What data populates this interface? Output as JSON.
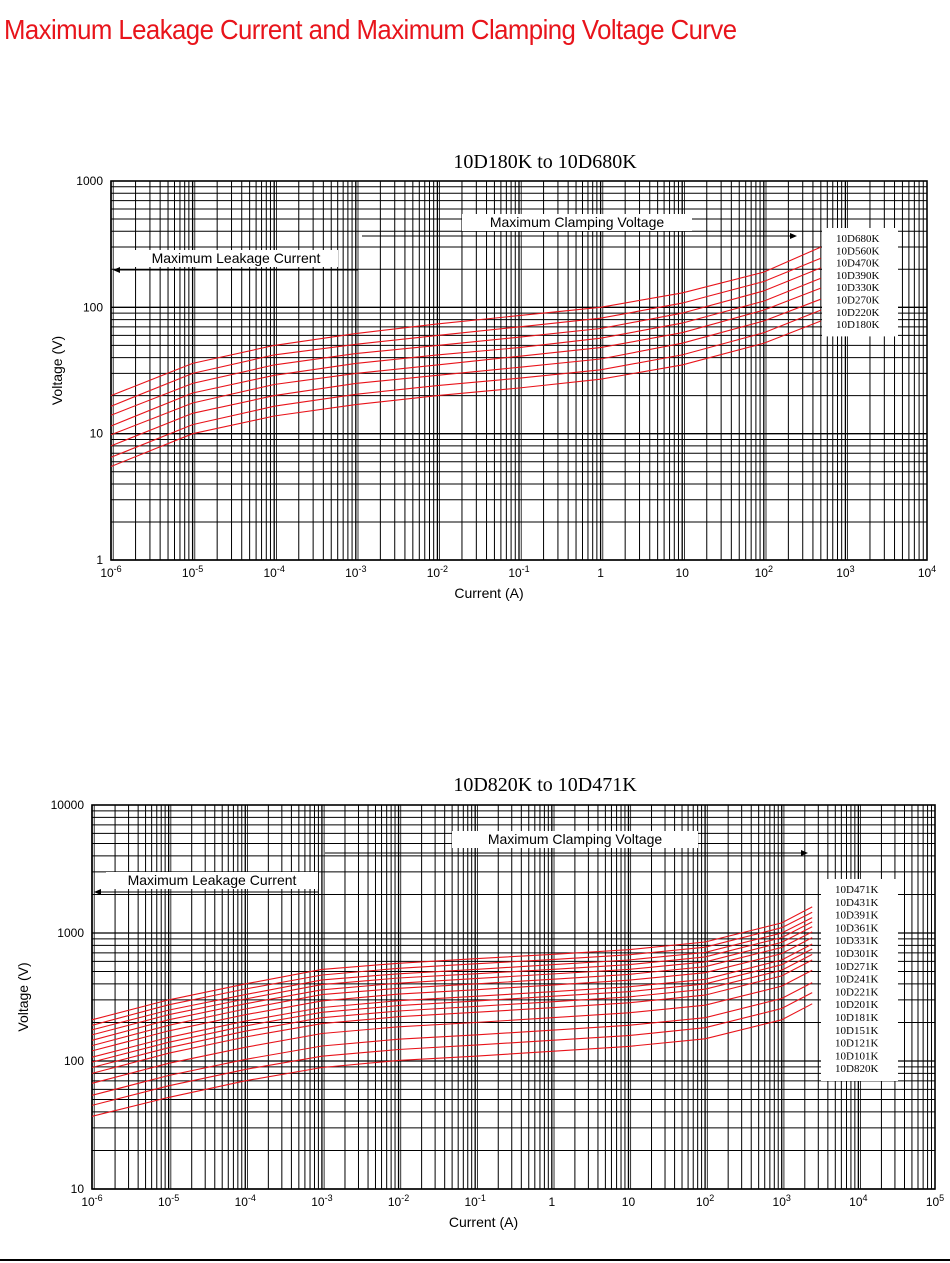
{
  "page_title": "Maximum Leakage Current and Maximum Clamping Voltage Curve",
  "colors": {
    "title": "#e8141b",
    "curve": "#e8141b",
    "grid": "#000000"
  },
  "chart_data": [
    {
      "type": "line",
      "title": "10D180K to 10D680K",
      "xlabel": "Current (A)",
      "ylabel": "Voltage (V)",
      "x_scale": "log",
      "y_scale": "log",
      "xlim": [
        1e-06,
        10000.0
      ],
      "ylim": [
        1,
        1000
      ],
      "x_ticks": [
        {
          "base": "10",
          "exp": "-6"
        },
        {
          "base": "10",
          "exp": "-5"
        },
        {
          "base": "10",
          "exp": "-4"
        },
        {
          "base": "10",
          "exp": "-3"
        },
        {
          "base": "10",
          "exp": "-2"
        },
        {
          "base": "10",
          "exp": "-1"
        },
        {
          "base": "1",
          "exp": ""
        },
        {
          "base": "10",
          "exp": ""
        },
        {
          "base": "10",
          "exp": "2"
        },
        {
          "base": "10",
          "exp": "3"
        },
        {
          "base": "10",
          "exp": "4"
        }
      ],
      "y_ticks": [
        "1",
        "10",
        "100",
        "1000"
      ],
      "annotations": {
        "clamping": "Maximum Clamping Voltage",
        "leakage": "Maximum Leakage Current"
      },
      "legend": [
        "10D680K",
        "10D560K",
        "10D470K",
        "10D390K",
        "10D330K",
        "10D270K",
        "10D220K",
        "10D180K"
      ],
      "x": [
        1e-06,
        1e-05,
        0.0001,
        0.001,
        0.01,
        0.1,
        1,
        10,
        100,
        500
      ],
      "series": [
        {
          "name": "10D680K",
          "values": [
            20,
            36,
            50,
            62,
            74,
            86,
            100,
            130,
            190,
            300
          ]
        },
        {
          "name": "10D560K",
          "values": [
            16.5,
            30,
            42,
            51,
            60,
            70,
            82,
            108,
            160,
            245
          ]
        },
        {
          "name": "10D470K",
          "values": [
            14,
            25,
            35,
            43,
            50,
            58,
            68,
            90,
            135,
            205
          ]
        },
        {
          "name": "10D390K",
          "values": [
            11.5,
            21,
            29,
            36,
            42,
            48,
            57,
            75,
            112,
            170
          ]
        },
        {
          "name": "10D330K",
          "values": [
            9.8,
            17.5,
            24.5,
            30,
            35,
            41,
            48,
            63,
            95,
            142
          ]
        },
        {
          "name": "10D270K",
          "values": [
            8,
            14.5,
            20,
            25,
            29,
            33.5,
            39,
            52,
            78,
            116
          ]
        },
        {
          "name": "10D220K",
          "values": [
            6.5,
            11.8,
            16.5,
            20.5,
            24,
            27.5,
            32,
            42,
            63,
            95
          ]
        },
        {
          "name": "10D180K",
          "values": [
            5.5,
            10,
            13.8,
            17,
            20,
            23,
            27,
            35,
            52,
            78
          ]
        }
      ]
    },
    {
      "type": "line",
      "title": "10D820K to 10D471K",
      "xlabel": "Current (A)",
      "ylabel": "Voltage (V)",
      "x_scale": "log",
      "y_scale": "log",
      "xlim": [
        1e-06,
        100000.0
      ],
      "ylim": [
        10,
        10000
      ],
      "x_ticks": [
        {
          "base": "10",
          "exp": "-6"
        },
        {
          "base": "10",
          "exp": "-5"
        },
        {
          "base": "10",
          "exp": "-4"
        },
        {
          "base": "10",
          "exp": "-3"
        },
        {
          "base": "10",
          "exp": "-2"
        },
        {
          "base": "10",
          "exp": "-1"
        },
        {
          "base": "1",
          "exp": ""
        },
        {
          "base": "10",
          "exp": ""
        },
        {
          "base": "10",
          "exp": "2"
        },
        {
          "base": "10",
          "exp": "3"
        },
        {
          "base": "10",
          "exp": "4"
        },
        {
          "base": "10",
          "exp": "5"
        }
      ],
      "y_ticks": [
        "10",
        "100",
        "1000",
        "10000"
      ],
      "annotations": {
        "clamping": "Maximum Clamping Voltage",
        "leakage": "Maximum Leakage Current"
      },
      "legend": [
        "10D471K",
        "10D431K",
        "10D391K",
        "10D361K",
        "10D331K",
        "10D301K",
        "10D271K",
        "10D241K",
        "10D221K",
        "10D201K",
        "10D181K",
        "10D151K",
        "10D121K",
        "10D101K",
        "10D820K"
      ],
      "x": [
        1e-06,
        1e-05,
        0.0001,
        0.001,
        0.01,
        0.1,
        1,
        10,
        100,
        1000,
        2500
      ],
      "series": [
        {
          "name": "10D471K",
          "values": [
            210,
            300,
            400,
            520,
            580,
            630,
            680,
            740,
            850,
            1200,
            1600
          ]
        },
        {
          "name": "10D431K",
          "values": [
            190,
            275,
            365,
            470,
            530,
            575,
            620,
            675,
            775,
            1100,
            1450
          ]
        },
        {
          "name": "10D391K",
          "values": [
            175,
            250,
            330,
            430,
            480,
            520,
            565,
            615,
            705,
            1000,
            1320
          ]
        },
        {
          "name": "10D361K",
          "values": [
            160,
            230,
            305,
            395,
            445,
            480,
            520,
            565,
            650,
            920,
            1220
          ]
        },
        {
          "name": "10D331K",
          "values": [
            145,
            210,
            280,
            360,
            405,
            440,
            478,
            520,
            595,
            845,
            1120
          ]
        },
        {
          "name": "10D301K",
          "values": [
            132,
            190,
            255,
            330,
            370,
            400,
            435,
            475,
            545,
            770,
            1020
          ]
        },
        {
          "name": "10D271K",
          "values": [
            120,
            172,
            230,
            295,
            333,
            360,
            392,
            428,
            490,
            690,
            920
          ]
        },
        {
          "name": "10D241K",
          "values": [
            107,
            153,
            205,
            262,
            296,
            320,
            348,
            380,
            435,
            615,
            820
          ]
        },
        {
          "name": "10D221K",
          "values": [
            98,
            140,
            188,
            240,
            271,
            294,
            320,
            348,
            400,
            565,
            750
          ]
        },
        {
          "name": "10D201K",
          "values": [
            89,
            127,
            171,
            218,
            246,
            267,
            290,
            317,
            364,
            512,
            680
          ]
        },
        {
          "name": "10D181K",
          "values": [
            80,
            115,
            154,
            196,
            222,
            240,
            261,
            285,
            327,
            462,
            615
          ]
        },
        {
          "name": "10D151K",
          "values": [
            67,
            96,
            128,
            164,
            185,
            200,
            218,
            238,
            273,
            385,
            512
          ]
        },
        {
          "name": "10D121K",
          "values": [
            54,
            77,
            103,
            131,
            148,
            160,
            174,
            190,
            218,
            308,
            410
          ]
        },
        {
          "name": "10D101K",
          "values": [
            45,
            64,
            86,
            109,
            123,
            133,
            145,
            158,
            182,
            257,
            342
          ]
        },
        {
          "name": "10D820K",
          "values": [
            37,
            52,
            70,
            89,
            101,
            109,
            119,
            130,
            149,
            210,
            280
          ]
        }
      ]
    }
  ]
}
